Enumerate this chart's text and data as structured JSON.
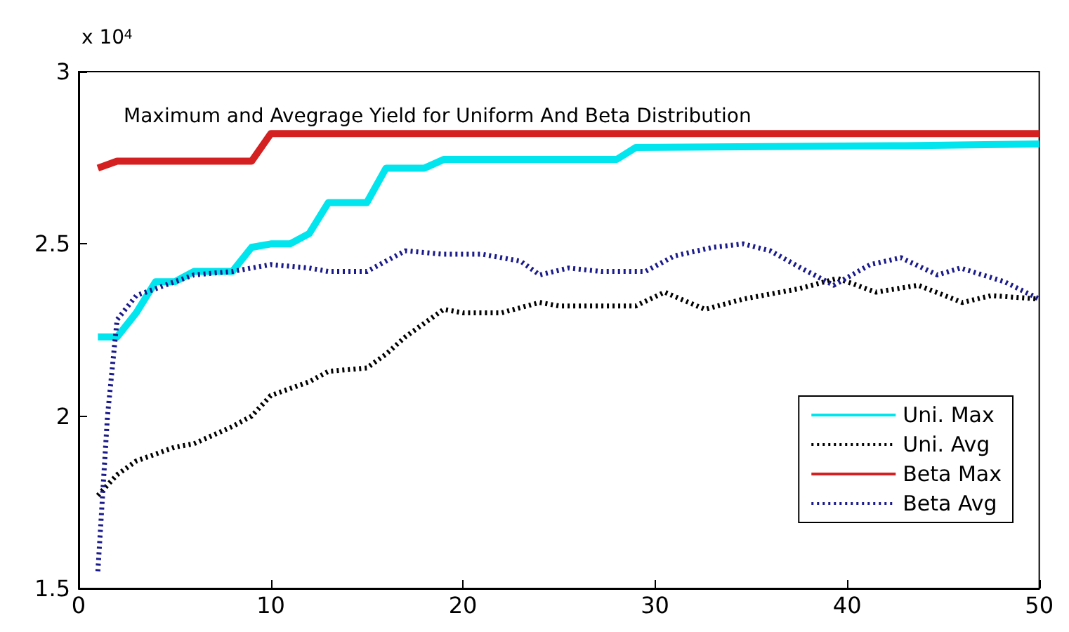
{
  "chart_data": {
    "type": "line",
    "title": "Maximum and Avegrage Yield for Uniform And Beta Distribution",
    "annotations": [
      "x 10$^{4}$"
    ],
    "xlim": [
      0,
      50
    ],
    "xticks": [
      0,
      10,
      20,
      30,
      40,
      50
    ],
    "ylim": [
      1.5,
      3
    ],
    "yticks": [
      1.5,
      2,
      2.5,
      3
    ],
    "grid": false,
    "legend": "bottom right",
    "marker": "none",
    "series": [
      {
        "name": "Uni. Max",
        "color": "#00e5ee",
        "line_style": "solid",
        "x": [
          1,
          2,
          3,
          4,
          5,
          6,
          7,
          8,
          9,
          10,
          11,
          12,
          13,
          14,
          15,
          16,
          17,
          18,
          19,
          20,
          28,
          29,
          43,
          50
        ],
        "values": [
          2.23,
          2.23,
          2.3,
          2.39,
          2.39,
          2.42,
          2.42,
          2.42,
          2.49,
          2.5,
          2.5,
          2.53,
          2.62,
          2.62,
          2.62,
          2.72,
          2.72,
          2.72,
          2.745,
          2.745,
          2.745,
          2.78,
          2.785,
          2.79
        ]
      },
      {
        "name": "Uni. Avg",
        "color": "#000000",
        "line_style": "dotted",
        "x": [
          1,
          2,
          3,
          5,
          6,
          8,
          9,
          10,
          12,
          13,
          15,
          16,
          17,
          18,
          19,
          20,
          22,
          24,
          25,
          29,
          30.5,
          32.6,
          34.6,
          37.5,
          39.5,
          41.5,
          43.7,
          46,
          47.5,
          50
        ],
        "values": [
          1.77,
          1.83,
          1.87,
          1.91,
          1.92,
          1.97,
          2.0,
          2.06,
          2.1,
          2.13,
          2.14,
          2.18,
          2.23,
          2.27,
          2.31,
          2.3,
          2.3,
          2.33,
          2.32,
          2.32,
          2.36,
          2.31,
          2.34,
          2.37,
          2.4,
          2.36,
          2.38,
          2.33,
          2.35,
          2.34
        ]
      },
      {
        "name": "Beta Max",
        "color": "#d42020",
        "line_style": "solid",
        "x": [
          1,
          2,
          9,
          10,
          50
        ],
        "values": [
          2.72,
          2.74,
          2.74,
          2.82,
          2.82
        ]
      },
      {
        "name": "Beta Avg",
        "color": "#1a1a8c",
        "line_style": "dotted",
        "x": [
          1,
          1.5,
          2,
          3,
          4,
          5,
          6,
          8,
          9,
          10,
          12,
          13,
          15,
          16,
          17,
          19,
          21,
          23,
          24,
          25.5,
          27.2,
          29.5,
          31,
          33,
          34.6,
          36,
          37.6,
          39.3,
          41.2,
          42.8,
          44.7,
          45.9,
          48.2,
          50
        ],
        "values": [
          1.55,
          2.0,
          2.28,
          2.35,
          2.37,
          2.39,
          2.41,
          2.42,
          2.43,
          2.44,
          2.43,
          2.42,
          2.42,
          2.45,
          2.48,
          2.47,
          2.47,
          2.45,
          2.41,
          2.43,
          2.42,
          2.42,
          2.465,
          2.49,
          2.5,
          2.48,
          2.43,
          2.38,
          2.44,
          2.46,
          2.41,
          2.43,
          2.39,
          2.34
        ]
      }
    ]
  }
}
